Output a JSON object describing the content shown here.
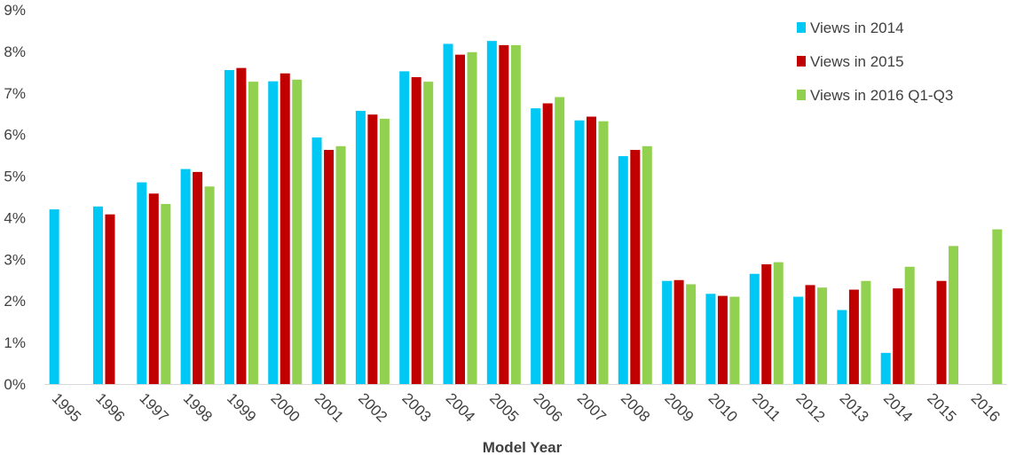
{
  "chart_data": {
    "type": "bar",
    "title": "",
    "xlabel": "Model Year",
    "ylabel": "",
    "ylim": [
      0,
      9
    ],
    "yticks": [
      "0%",
      "1%",
      "2%",
      "3%",
      "4%",
      "5%",
      "6%",
      "7%",
      "8%",
      "9%"
    ],
    "ytick_values": [
      0,
      1,
      2,
      3,
      4,
      5,
      6,
      7,
      8,
      9
    ],
    "grid": false,
    "legend_position": "top-right",
    "categories": [
      "1995",
      "1996",
      "1997",
      "1998",
      "1999",
      "2000",
      "2001",
      "2002",
      "2003",
      "2004",
      "2005",
      "2006",
      "2007",
      "2008",
      "2009",
      "2010",
      "2011",
      "2012",
      "2013",
      "2014",
      "2015",
      "2016"
    ],
    "series": [
      {
        "name": "Views in 2014",
        "color": "#00c8f5",
        "values": [
          4.2,
          4.27,
          4.85,
          5.17,
          7.55,
          7.28,
          5.93,
          6.57,
          7.52,
          8.18,
          8.25,
          6.63,
          6.34,
          5.48,
          2.48,
          2.17,
          2.65,
          2.1,
          1.78,
          0.75,
          null,
          null
        ]
      },
      {
        "name": "Views in 2015",
        "color": "#c00000",
        "values": [
          null,
          4.08,
          4.58,
          5.1,
          7.6,
          7.47,
          5.63,
          6.48,
          7.38,
          7.92,
          8.15,
          6.75,
          6.43,
          5.63,
          2.5,
          2.12,
          2.88,
          2.38,
          2.27,
          2.3,
          2.48,
          null
        ]
      },
      {
        "name": "Views in 2016 Q1-Q3",
        "color": "#92d050",
        "values": [
          null,
          null,
          4.33,
          4.75,
          7.27,
          7.32,
          5.72,
          6.38,
          7.27,
          7.98,
          8.15,
          6.9,
          6.32,
          5.72,
          2.4,
          2.1,
          2.93,
          2.32,
          2.48,
          2.82,
          3.32,
          3.72
        ]
      }
    ]
  }
}
